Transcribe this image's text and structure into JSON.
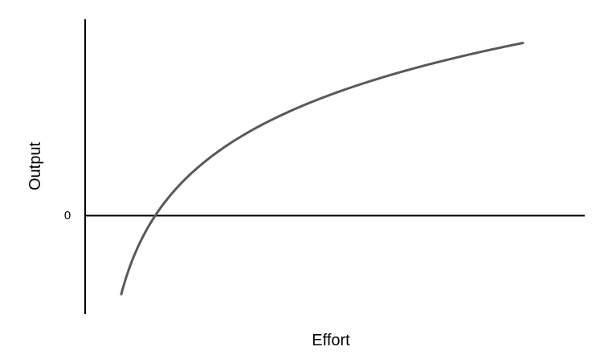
{
  "chart_data": {
    "type": "line",
    "xlabel": "Effort",
    "ylabel": "Output",
    "y_ticks": [
      "0"
    ],
    "grid": false,
    "x_axis_numbered": false,
    "y_axis_numbered": false,
    "series": [
      {
        "color": "#595959",
        "shape": "logarithmic (diminishing returns)",
        "x": [
          0.4,
          0.9,
          1,
          1.5,
          2,
          3,
          4,
          5,
          6,
          7,
          7.5
        ],
        "y": [
          -0.92,
          -0.1,
          0,
          0.4,
          0.69,
          1.1,
          1.39,
          1.61,
          1.79,
          1.95,
          2.01
        ]
      }
    ]
  }
}
